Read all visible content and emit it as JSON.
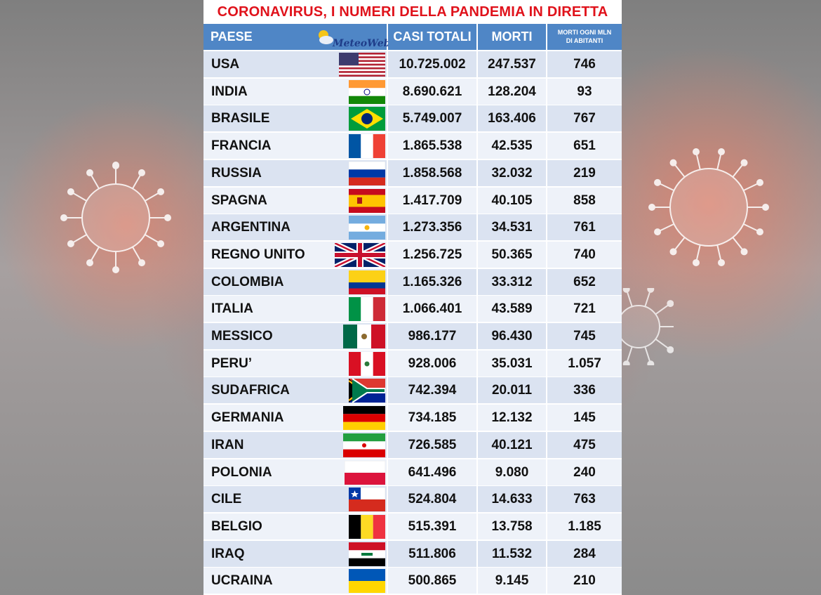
{
  "title": "CORONAVIRUS, I NUMERI DELLA PANDEMIA IN DIRETTA",
  "logo_text": "MeteoWeb",
  "headers": {
    "paese": "PAESE",
    "casi": "CASI TOTALI",
    "morti": "MORTI",
    "mln_line1": "MORTI OGNI MLN",
    "mln_line2": "DI ABITANTI"
  },
  "rows": [
    {
      "country": "USA",
      "flag": "usa-flag-icon",
      "cases": "10.725.002",
      "deaths": "247.537",
      "per_mln": "746"
    },
    {
      "country": "INDIA",
      "flag": "india-flag-icon",
      "cases": "8.690.621",
      "deaths": "128.204",
      "per_mln": "93"
    },
    {
      "country": "BRASILE",
      "flag": "brazil-flag-icon",
      "cases": "5.749.007",
      "deaths": "163.406",
      "per_mln": "767"
    },
    {
      "country": "FRANCIA",
      "flag": "france-flag-icon",
      "cases": "1.865.538",
      "deaths": "42.535",
      "per_mln": "651"
    },
    {
      "country": "RUSSIA",
      "flag": "russia-flag-icon",
      "cases": "1.858.568",
      "deaths": "32.032",
      "per_mln": "219"
    },
    {
      "country": "SPAGNA",
      "flag": "spain-flag-icon",
      "cases": "1.417.709",
      "deaths": "40.105",
      "per_mln": "858"
    },
    {
      "country": "ARGENTINA",
      "flag": "argentina-flag-icon",
      "cases": "1.273.356",
      "deaths": "34.531",
      "per_mln": "761"
    },
    {
      "country": "REGNO UNITO",
      "flag": "uk-flag-icon",
      "cases": "1.256.725",
      "deaths": "50.365",
      "per_mln": "740"
    },
    {
      "country": "COLOMBIA",
      "flag": "colombia-flag-icon",
      "cases": "1.165.326",
      "deaths": "33.312",
      "per_mln": "652"
    },
    {
      "country": "ITALIA",
      "flag": "italy-flag-icon",
      "cases": "1.066.401",
      "deaths": "43.589",
      "per_mln": "721"
    },
    {
      "country": "MESSICO",
      "flag": "mexico-flag-icon",
      "cases": "986.177",
      "deaths": "96.430",
      "per_mln": "745"
    },
    {
      "country": "PERU’",
      "flag": "peru-flag-icon",
      "cases": "928.006",
      "deaths": "35.031",
      "per_mln": "1.057"
    },
    {
      "country": "SUDAFRICA",
      "flag": "south-africa-flag-icon",
      "cases": "742.394",
      "deaths": "20.011",
      "per_mln": "336"
    },
    {
      "country": "GERMANIA",
      "flag": "germany-flag-icon",
      "cases": "734.185",
      "deaths": "12.132",
      "per_mln": "145"
    },
    {
      "country": "IRAN",
      "flag": "iran-flag-icon",
      "cases": "726.585",
      "deaths": "40.121",
      "per_mln": "475"
    },
    {
      "country": "POLONIA",
      "flag": "poland-flag-icon",
      "cases": "641.496",
      "deaths": "9.080",
      "per_mln": "240"
    },
    {
      "country": "CILE",
      "flag": "chile-flag-icon",
      "cases": "524.804",
      "deaths": "14.633",
      "per_mln": "763"
    },
    {
      "country": "BELGIO",
      "flag": "belgium-flag-icon",
      "cases": "515.391",
      "deaths": "13.758",
      "per_mln": "1.185"
    },
    {
      "country": "IRAQ",
      "flag": "iraq-flag-icon",
      "cases": "511.806",
      "deaths": "11.532",
      "per_mln": "284"
    },
    {
      "country": "UCRAINA",
      "flag": "ukraine-flag-icon",
      "cases": "500.865",
      "deaths": "9.145",
      "per_mln": "210"
    }
  ]
}
